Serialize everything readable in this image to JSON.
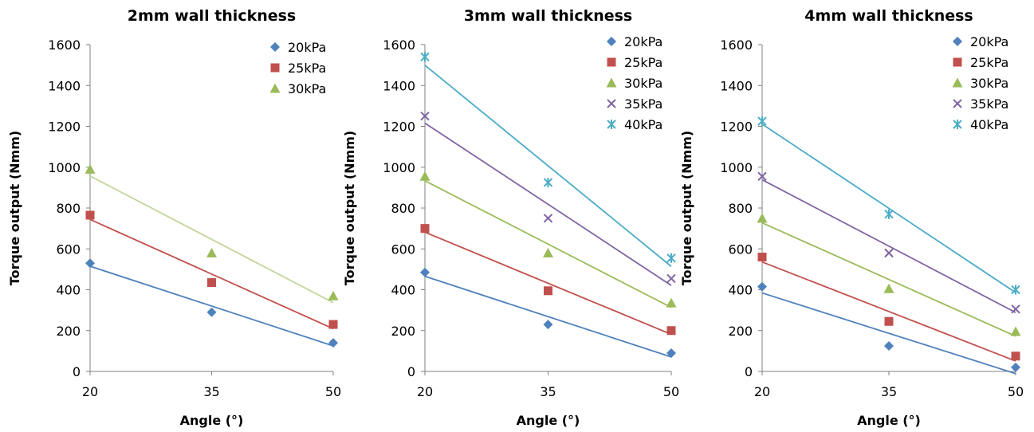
{
  "chart_data": [
    {
      "type": "scatter",
      "title": "2mm wall thickness",
      "xlabel": "Angle (°)",
      "ylabel": "Torque output (Nmm)",
      "x": [
        20,
        35,
        50
      ],
      "x_ticks": [
        20,
        35,
        50
      ],
      "xlim": [
        20,
        50
      ],
      "ylim": [
        0,
        1600
      ],
      "y_ticks": [
        0,
        200,
        400,
        600,
        800,
        1000,
        1200,
        1400,
        1600
      ],
      "grid": false,
      "legend_position": "top-right",
      "trendlines": true,
      "series": [
        {
          "name": "20kPa",
          "marker": "diamond",
          "color": "#4F81BD",
          "trend_color": "#4F81BD",
          "values": [
            530,
            290,
            140
          ]
        },
        {
          "name": "25kPa",
          "marker": "square",
          "color": "#C0504D",
          "trend_color": "#C0504D",
          "values": [
            765,
            435,
            230
          ]
        },
        {
          "name": "30kPa",
          "marker": "triangle",
          "color": "#9BBB59",
          "trend_color": "#C3D69B",
          "values": [
            990,
            580,
            370
          ]
        }
      ]
    },
    {
      "type": "scatter",
      "title": "3mm wall thickness",
      "xlabel": "Angle (°)",
      "ylabel": "Torque output (Nmm)",
      "x": [
        20,
        35,
        50
      ],
      "x_ticks": [
        20,
        35,
        50
      ],
      "xlim": [
        20,
        50
      ],
      "ylim": [
        0,
        1600
      ],
      "y_ticks": [
        0,
        200,
        400,
        600,
        800,
        1000,
        1200,
        1400,
        1600
      ],
      "grid": false,
      "legend_position": "top-right",
      "trendlines": true,
      "series": [
        {
          "name": "20kPa",
          "marker": "diamond",
          "color": "#4F81BD",
          "trend_color": "#4F81BD",
          "values": [
            485,
            230,
            90
          ]
        },
        {
          "name": "25kPa",
          "marker": "square",
          "color": "#C0504D",
          "trend_color": "#C0504D",
          "values": [
            700,
            395,
            200
          ]
        },
        {
          "name": "30kPa",
          "marker": "triangle",
          "color": "#9BBB59",
          "trend_color": "#9BBB59",
          "values": [
            955,
            580,
            335
          ]
        },
        {
          "name": "35kPa",
          "marker": "x",
          "color": "#8064A2",
          "trend_color": "#8064A2",
          "values": [
            1250,
            750,
            455
          ]
        },
        {
          "name": "40kPa",
          "marker": "star",
          "color": "#4BACC6",
          "trend_color": "#4BACC6",
          "values": [
            1540,
            925,
            555
          ]
        }
      ]
    },
    {
      "type": "scatter",
      "title": "4mm wall thickness",
      "xlabel": "Angle (°)",
      "ylabel": "Torque output (Nmm)",
      "x": [
        20,
        35,
        50
      ],
      "x_ticks": [
        20,
        35,
        50
      ],
      "xlim": [
        20,
        50
      ],
      "ylim": [
        0,
        1600
      ],
      "y_ticks": [
        0,
        200,
        400,
        600,
        800,
        1000,
        1200,
        1400,
        1600
      ],
      "grid": false,
      "legend_position": "top-right",
      "trendlines": true,
      "series": [
        {
          "name": "20kPa",
          "marker": "diamond",
          "color": "#4F81BD",
          "trend_color": "#4F81BD",
          "values": [
            415,
            125,
            20
          ]
        },
        {
          "name": "25kPa",
          "marker": "square",
          "color": "#C0504D",
          "trend_color": "#C0504D",
          "values": [
            560,
            245,
            75
          ]
        },
        {
          "name": "30kPa",
          "marker": "triangle",
          "color": "#9BBB59",
          "trend_color": "#9BBB59",
          "values": [
            750,
            405,
            195
          ]
        },
        {
          "name": "35kPa",
          "marker": "x",
          "color": "#8064A2",
          "trend_color": "#8064A2",
          "values": [
            955,
            580,
            305
          ]
        },
        {
          "name": "40kPa",
          "marker": "star",
          "color": "#4BACC6",
          "trend_color": "#4BACC6",
          "values": [
            1225,
            770,
            400
          ]
        }
      ]
    }
  ]
}
